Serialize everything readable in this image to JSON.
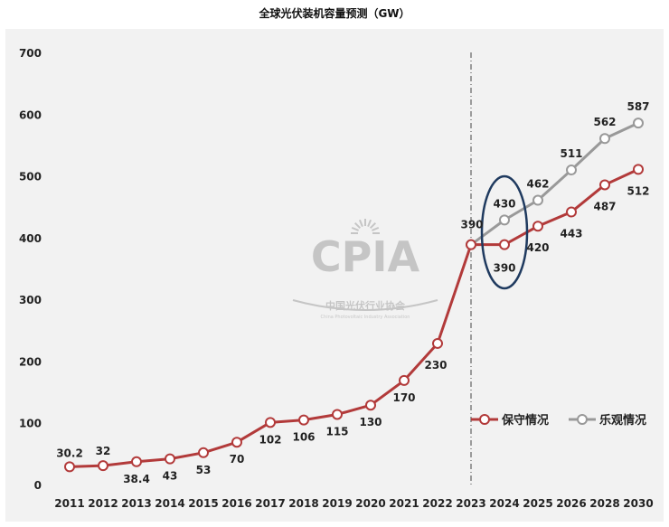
{
  "title": "全球光伏装机容量预测（GW）",
  "watermark": {
    "logo_text": "CPIA",
    "org_cn": "中国光伏行业协会",
    "org_en": "China Photovoltaic Industry Association"
  },
  "colors": {
    "conservative": "#b23a3a",
    "optimistic": "#999999",
    "ellipse": "#1f3a5f",
    "background": "#f2f2f2"
  },
  "chart_data": {
    "type": "line",
    "title": "全球光伏装机容量预测（GW）",
    "xlabel": "",
    "ylabel": "",
    "categories": [
      "2011",
      "2012",
      "2013",
      "2014",
      "2015",
      "2016",
      "2017",
      "2018",
      "2019",
      "2020",
      "2021",
      "2022",
      "2023",
      "2024",
      "2025",
      "2026",
      "2028",
      "2030"
    ],
    "ylim": [
      0,
      700
    ],
    "yticks": [
      0,
      100,
      200,
      300,
      400,
      500,
      600,
      700
    ],
    "grid": false,
    "legend_position": "right",
    "series": [
      {
        "name": "保守情况",
        "color": "#b23a3a",
        "values": [
          30.2,
          32,
          38.4,
          43,
          53,
          70,
          102,
          106,
          115,
          130,
          170,
          230,
          390,
          390,
          420,
          443,
          487,
          512
        ],
        "labels": [
          "30.2",
          "32",
          "38.4",
          "43",
          "53",
          "70",
          "102",
          "106",
          "115",
          "130",
          "170",
          "230",
          "",
          "390",
          "420",
          "443",
          "487",
          "512"
        ]
      },
      {
        "name": "乐观情况",
        "color": "#999999",
        "values": [
          null,
          null,
          null,
          null,
          null,
          null,
          null,
          null,
          null,
          null,
          null,
          null,
          390,
          430,
          462,
          511,
          562,
          587
        ],
        "labels": [
          "",
          "",
          "",
          "",
          "",
          "",
          "",
          "",
          "",
          "",
          "",
          "",
          "390",
          "430",
          "462",
          "511",
          "562",
          "587"
        ]
      }
    ],
    "annotations": {
      "vertical_divider_at": "2023",
      "highlight_ellipse_at": "2024"
    }
  }
}
